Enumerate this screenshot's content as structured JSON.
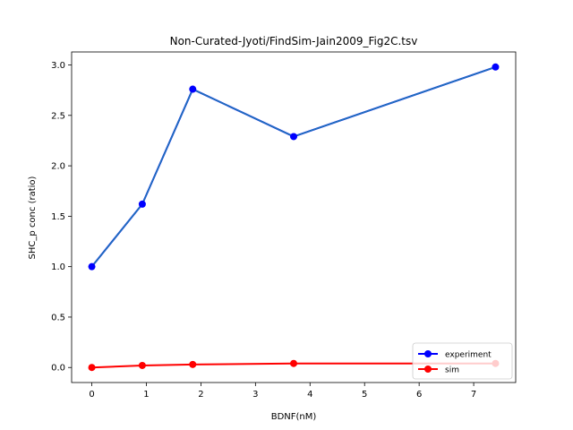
{
  "chart_data": {
    "type": "line",
    "title": "Non-Curated-Jyoti/FindSim-Jain2009_Fig2C.tsv",
    "xlabel": "BDNF(nM)",
    "ylabel": "SHC_p conc (ratio)",
    "xlim": [
      -0.37,
      7.77
    ],
    "ylim": [
      -0.149,
      3.129
    ],
    "xticks": [
      0,
      1,
      2,
      3,
      4,
      5,
      6,
      7
    ],
    "xtick_labels": [
      "0",
      "1",
      "2",
      "3",
      "4",
      "5",
      "6",
      "7"
    ],
    "yticks": [
      0.0,
      0.5,
      1.0,
      1.5,
      2.0,
      2.5,
      3.0
    ],
    "ytick_labels": [
      "0.0",
      "0.5",
      "1.0",
      "1.5",
      "2.0",
      "2.5",
      "3.0"
    ],
    "grid": false,
    "legend_position": "lower right",
    "series": [
      {
        "name": "experiment",
        "color": "#0000ff",
        "x": [
          0,
          0.925,
          1.85,
          3.7,
          7.4
        ],
        "y": [
          1.0,
          1.62,
          2.76,
          2.29,
          2.98
        ]
      },
      {
        "name": "sim",
        "color": "#ff0000",
        "x": [
          0,
          0.925,
          1.85,
          3.7,
          7.4
        ],
        "y": [
          0.0,
          0.02,
          0.03,
          0.04,
          0.04
        ]
      }
    ],
    "overlay_line_color": "#1f77b4"
  }
}
